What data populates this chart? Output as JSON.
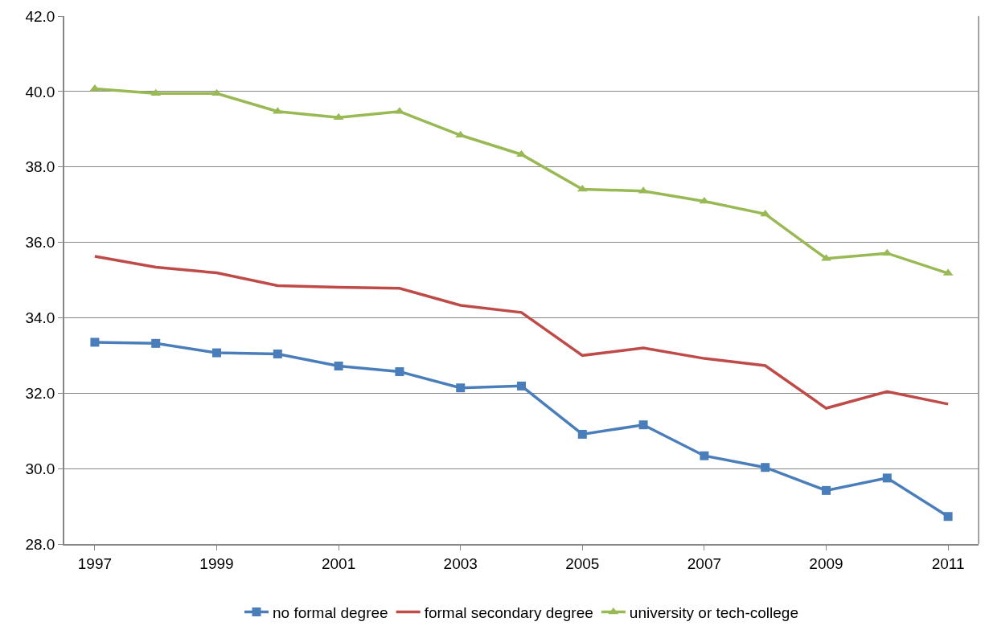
{
  "chart_data": {
    "type": "line",
    "x": [
      1997,
      1998,
      1999,
      2000,
      2001,
      2002,
      2003,
      2004,
      2005,
      2006,
      2007,
      2008,
      2009,
      2010,
      2011
    ],
    "series": [
      {
        "name": "no formal degree",
        "color": "#4a7ebb",
        "marker": "square",
        "values": [
          33.35,
          33.32,
          33.07,
          33.04,
          32.72,
          32.57,
          32.14,
          32.19,
          30.91,
          31.16,
          30.34,
          30.03,
          29.42,
          29.75,
          28.73
        ]
      },
      {
        "name": "formal secondary degree",
        "color": "#be4b48",
        "marker": "none",
        "values": [
          35.63,
          35.34,
          35.19,
          34.85,
          34.81,
          34.78,
          34.33,
          34.14,
          33.0,
          33.2,
          32.92,
          32.73,
          31.6,
          32.04,
          31.71
        ]
      },
      {
        "name": "university or tech-college",
        "color": "#98b954",
        "marker": "triangle",
        "values": [
          40.07,
          39.95,
          39.95,
          39.47,
          39.31,
          39.47,
          38.84,
          38.33,
          37.41,
          37.36,
          37.09,
          36.75,
          35.57,
          35.71,
          35.18
        ]
      }
    ],
    "xlim": [
      1996.5,
      2011.5
    ],
    "xticks": [
      1997,
      1999,
      2001,
      2003,
      2005,
      2007,
      2009,
      2011
    ],
    "ylim": [
      28,
      42
    ],
    "yticks": [
      {
        "value": 28,
        "label": "28.0"
      },
      {
        "value": 30,
        "label": "30.0"
      },
      {
        "value": 32,
        "label": "32.0"
      },
      {
        "value": 34,
        "label": "34.0"
      },
      {
        "value": 36,
        "label": "36.0"
      },
      {
        "value": 38,
        "label": "38.0"
      },
      {
        "value": 40,
        "label": "40.0"
      },
      {
        "value": 42,
        "label": "42.0"
      }
    ],
    "grid": "y",
    "legend": "bottom",
    "line_style": "solid"
  }
}
